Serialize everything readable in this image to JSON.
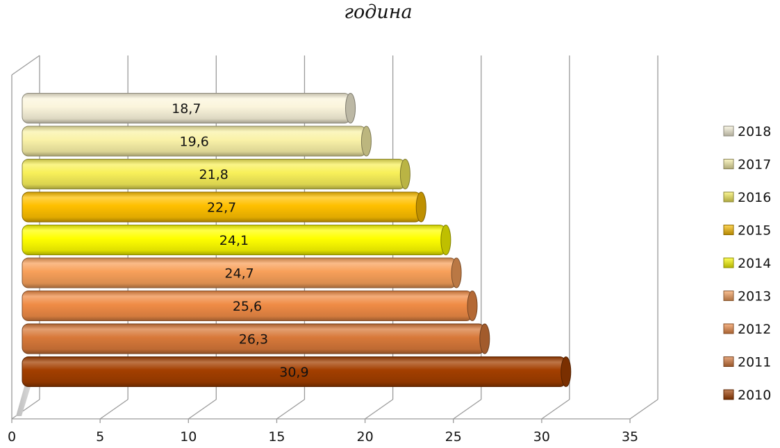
{
  "chart_data": {
    "type": "bar",
    "orientation": "horizontal",
    "title": "година",
    "xlabel": "",
    "ylabel": "",
    "xlim": [
      0,
      35
    ],
    "x_ticks": [
      0,
      5,
      10,
      15,
      20,
      25,
      30,
      35
    ],
    "grid": true,
    "legend_position": "right",
    "categories": [
      "2018",
      "2017",
      "2016",
      "2015",
      "2014",
      "2013",
      "2012",
      "2011",
      "2010"
    ],
    "values": [
      18.7,
      19.6,
      21.8,
      22.7,
      24.1,
      24.7,
      25.6,
      26.3,
      30.9
    ],
    "value_labels": [
      "18,7",
      "19,6",
      "21,8",
      "22,7",
      "24,1",
      "24,7",
      "25,6",
      "26,3",
      "30,9"
    ],
    "colors": [
      "#fbf5dc",
      "#faf2a8",
      "#f8f05a",
      "#ffc000",
      "#ffff00",
      "#f8a05a",
      "#f08c46",
      "#d8793a",
      "#a33f00"
    ]
  }
}
